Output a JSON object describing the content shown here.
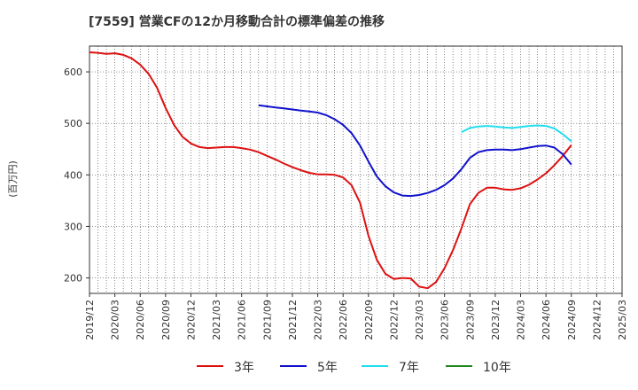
{
  "chart_data": {
    "type": "line",
    "title": "[7559]  営業CFの12か月移動合計の標準偏差の推移",
    "ylabel": "(百万円)",
    "xlabel": "",
    "ylim": [
      170,
      650
    ],
    "yticks": [
      200,
      300,
      400,
      500,
      600
    ],
    "x_range": [
      "2019/12",
      "2025/03"
    ],
    "x_ticks": [
      "2019/12",
      "2020/03",
      "2020/06",
      "2020/09",
      "2020/12",
      "2021/03",
      "2021/06",
      "2021/09",
      "2021/12",
      "2022/03",
      "2022/06",
      "2022/09",
      "2022/12",
      "2023/03",
      "2023/06",
      "2023/09",
      "2023/12",
      "2024/03",
      "2024/06",
      "2024/09",
      "2024/12",
      "2025/03"
    ],
    "grid": true,
    "legend_position": "bottom",
    "series": [
      {
        "name": "3年",
        "color": "#dd1111",
        "points": [
          [
            "2019/12",
            638
          ],
          [
            "2020/01",
            637
          ],
          [
            "2020/02",
            635
          ],
          [
            "2020/03",
            636
          ],
          [
            "2020/04",
            633
          ],
          [
            "2020/05",
            626
          ],
          [
            "2020/06",
            614
          ],
          [
            "2020/07",
            596
          ],
          [
            "2020/08",
            569
          ],
          [
            "2020/09",
            530
          ],
          [
            "2020/10",
            497
          ],
          [
            "2020/11",
            474
          ],
          [
            "2020/12",
            461
          ],
          [
            "2021/01",
            454
          ],
          [
            "2021/02",
            452
          ],
          [
            "2021/03",
            453
          ],
          [
            "2021/04",
            454
          ],
          [
            "2021/05",
            454
          ],
          [
            "2021/06",
            452
          ],
          [
            "2021/07",
            449
          ],
          [
            "2021/08",
            444
          ],
          [
            "2021/09",
            437
          ],
          [
            "2021/10",
            430
          ],
          [
            "2021/11",
            422
          ],
          [
            "2021/12",
            415
          ],
          [
            "2022/01",
            409
          ],
          [
            "2022/02",
            404
          ],
          [
            "2022/03",
            401
          ],
          [
            "2022/04",
            401
          ],
          [
            "2022/05",
            400
          ],
          [
            "2022/06",
            395
          ],
          [
            "2022/07",
            380
          ],
          [
            "2022/08",
            346
          ],
          [
            "2022/09",
            282
          ],
          [
            "2022/10",
            235
          ],
          [
            "2022/11",
            208
          ],
          [
            "2022/12",
            198
          ],
          [
            "2023/01",
            200
          ],
          [
            "2023/02",
            199
          ],
          [
            "2023/03",
            183
          ],
          [
            "2023/04",
            180
          ],
          [
            "2023/05",
            192
          ],
          [
            "2023/06",
            219
          ],
          [
            "2023/07",
            254
          ],
          [
            "2023/08",
            296
          ],
          [
            "2023/09",
            343
          ],
          [
            "2023/10",
            365
          ],
          [
            "2023/11",
            375
          ],
          [
            "2023/12",
            375
          ],
          [
            "2024/01",
            372
          ],
          [
            "2024/02",
            371
          ],
          [
            "2024/03",
            374
          ],
          [
            "2024/04",
            381
          ],
          [
            "2024/05",
            391
          ],
          [
            "2024/06",
            403
          ],
          [
            "2024/07",
            419
          ],
          [
            "2024/08",
            437
          ],
          [
            "2024/09",
            458
          ]
        ]
      },
      {
        "name": "5年",
        "color": "#1111cc",
        "points": [
          [
            "2021/08",
            535
          ],
          [
            "2021/09",
            533
          ],
          [
            "2021/10",
            531
          ],
          [
            "2021/11",
            529
          ],
          [
            "2021/12",
            527
          ],
          [
            "2022/01",
            525
          ],
          [
            "2022/02",
            523
          ],
          [
            "2022/03",
            521
          ],
          [
            "2022/04",
            516
          ],
          [
            "2022/05",
            508
          ],
          [
            "2022/06",
            497
          ],
          [
            "2022/07",
            481
          ],
          [
            "2022/08",
            457
          ],
          [
            "2022/09",
            426
          ],
          [
            "2022/10",
            397
          ],
          [
            "2022/11",
            378
          ],
          [
            "2022/12",
            366
          ],
          [
            "2023/01",
            360
          ],
          [
            "2023/02",
            359
          ],
          [
            "2023/03",
            361
          ],
          [
            "2023/04",
            365
          ],
          [
            "2023/05",
            371
          ],
          [
            "2023/06",
            380
          ],
          [
            "2023/07",
            393
          ],
          [
            "2023/08",
            411
          ],
          [
            "2023/09",
            433
          ],
          [
            "2023/10",
            444
          ],
          [
            "2023/11",
            448
          ],
          [
            "2023/12",
            449
          ],
          [
            "2024/01",
            449
          ],
          [
            "2024/02",
            448
          ],
          [
            "2024/03",
            450
          ],
          [
            "2024/04",
            453
          ],
          [
            "2024/05",
            456
          ],
          [
            "2024/06",
            457
          ],
          [
            "2024/07",
            453
          ],
          [
            "2024/08",
            440
          ],
          [
            "2024/09",
            420
          ]
        ]
      },
      {
        "name": "7年",
        "color": "#22ddee",
        "points": [
          [
            "2023/08",
            483
          ],
          [
            "2023/09",
            491
          ],
          [
            "2023/10",
            494
          ],
          [
            "2023/11",
            495
          ],
          [
            "2023/12",
            494
          ],
          [
            "2024/01",
            492
          ],
          [
            "2024/02",
            491
          ],
          [
            "2024/03",
            493
          ],
          [
            "2024/04",
            495
          ],
          [
            "2024/05",
            496
          ],
          [
            "2024/06",
            495
          ],
          [
            "2024/07",
            490
          ],
          [
            "2024/08",
            479
          ],
          [
            "2024/09",
            465
          ]
        ]
      },
      {
        "name": "10年",
        "color": "#228822",
        "points": []
      }
    ]
  }
}
